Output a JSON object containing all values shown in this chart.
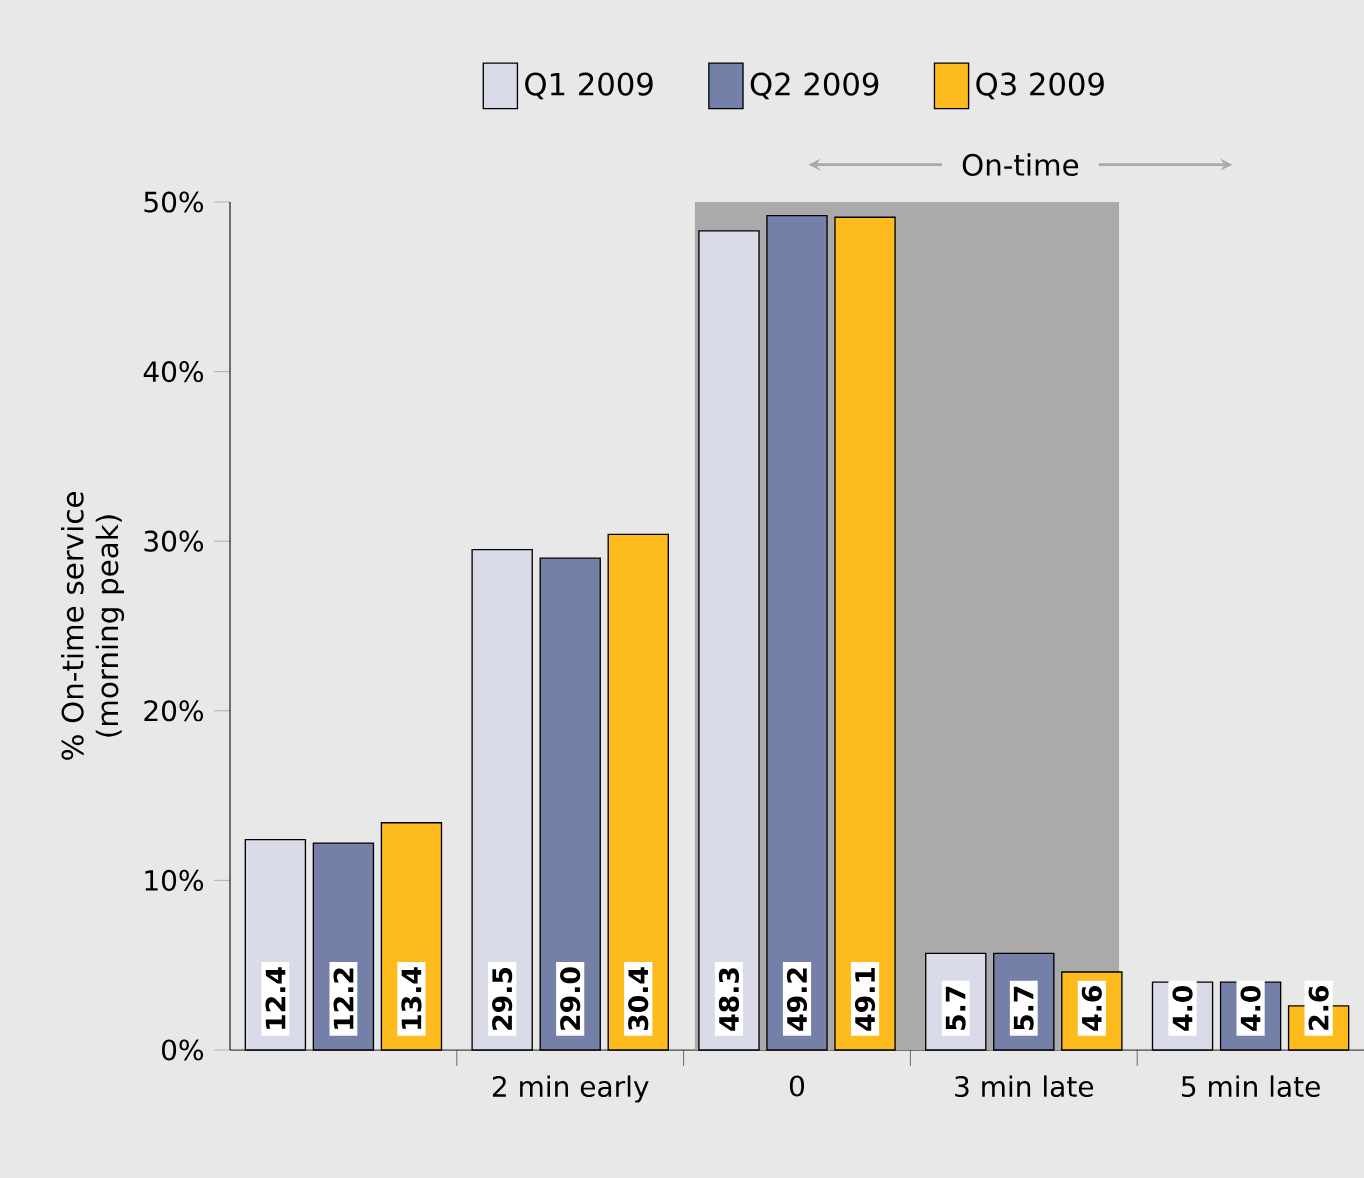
{
  "chart_data": {
    "type": "bar",
    "ylabel": "% On-time service (morning peak)",
    "categories": [
      null,
      "2 min early",
      "0",
      "3 min late",
      "5 min late"
    ],
    "series": [
      {
        "name": "Q1 2009",
        "color": "#d9dce8",
        "values": [
          12.4,
          29.5,
          48.3,
          5.7,
          4.0
        ],
        "value_labels": [
          "12.4",
          "29.5",
          "48.3",
          "5.7",
          "4.0"
        ]
      },
      {
        "name": "Q2 2009",
        "color": "#7480a8",
        "values": [
          12.2,
          29.0,
          49.2,
          5.7,
          4.0
        ],
        "value_labels": [
          "12.2",
          "29.0",
          "49.2",
          "5.7",
          "4.0"
        ]
      },
      {
        "name": "Q3 2009",
        "color": "#fdbb1e",
        "values": [
          13.4,
          30.4,
          49.1,
          4.6,
          2.6
        ],
        "value_labels": [
          "13.4",
          "30.4",
          "49.1",
          "4.6",
          "2.6"
        ]
      }
    ],
    "ylim": [
      0,
      50
    ],
    "yticks": [
      {
        "value": 0,
        "label": "0%"
      },
      {
        "value": 10,
        "label": "10%"
      },
      {
        "value": 20,
        "label": "20%"
      },
      {
        "value": 30,
        "label": "30%"
      },
      {
        "value": 40,
        "label": "40%"
      },
      {
        "value": 50,
        "label": "50%"
      }
    ],
    "bands": [
      {
        "axis": "x",
        "from": "0",
        "to": "3 min late",
        "label": "On-time",
        "color": "#aaaaaa"
      }
    ],
    "legend": "top"
  }
}
